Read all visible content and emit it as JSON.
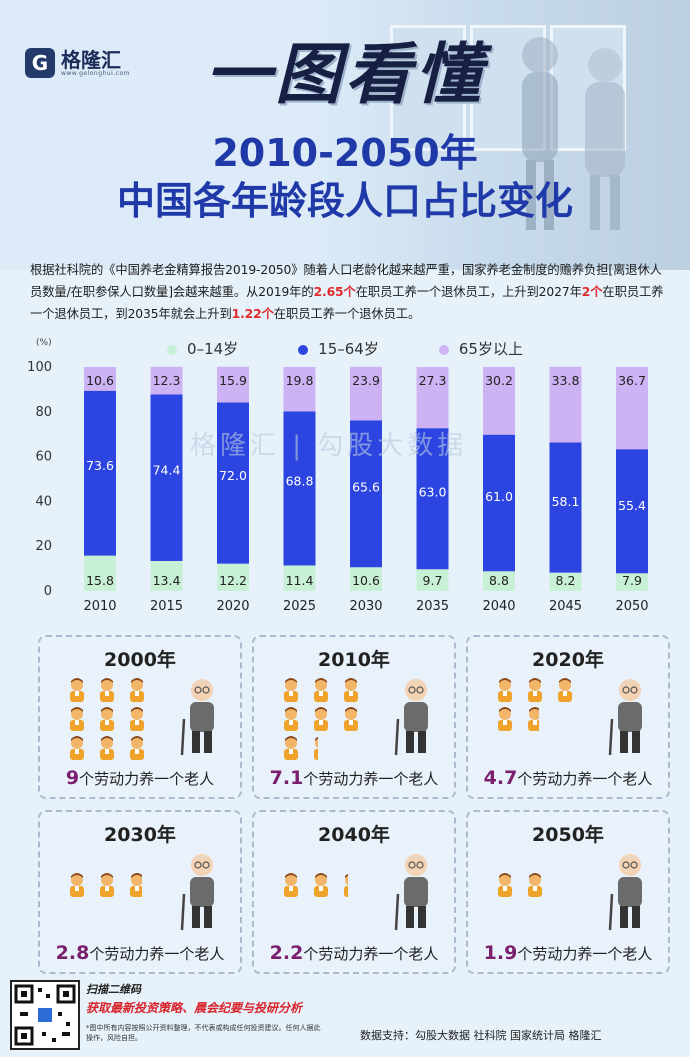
{
  "brand": {
    "name": "格隆汇",
    "site": "www.gelonghui.com"
  },
  "hero": {
    "title": "一图看懂",
    "subtitle_line1": "2010-2050年",
    "subtitle_line2": "中国各年龄段人口占比变化"
  },
  "intro": {
    "p1": "根据社科院的《中国养老金精算报告2019-2050》随着人口老龄化越来越严重，国家养老金制度的赡养负担[离退休人员数量/在职参保人口数量]会越来越重。从2019年的",
    "hl1": "2.65个",
    "p2": "在职员工养一个退休员工，上升到2027年",
    "hl2": "2个",
    "p3": "在职员工养一个退休员工，到2035年就会上升到",
    "hl3": "1.22个",
    "p4": "在职员工养一个退休员工。"
  },
  "colors": {
    "age_0_14": "#c8f0d6",
    "age_15_64": "#2c45e0",
    "age_65_plus": "#cdb3f4",
    "highlight": "#e02b2b"
  },
  "chart_data": {
    "type": "bar",
    "stacked": true,
    "unit_label": "(%)",
    "categories": [
      "2010",
      "2015",
      "2020",
      "2025",
      "2030",
      "2035",
      "2040",
      "2045",
      "2050"
    ],
    "series": [
      {
        "name": "0–14岁",
        "values": [
          15.8,
          13.4,
          12.2,
          11.4,
          10.6,
          9.7,
          8.8,
          8.2,
          7.9
        ]
      },
      {
        "name": "15–64岁",
        "values": [
          73.6,
          74.4,
          72.0,
          68.8,
          65.6,
          63.0,
          61.0,
          58.1,
          55.4
        ]
      },
      {
        "name": "65岁以上",
        "values": [
          10.6,
          12.3,
          15.9,
          19.8,
          23.9,
          27.3,
          30.2,
          33.8,
          36.7
        ]
      }
    ],
    "value_labels": [
      [
        "15.8",
        "13.4",
        "12.2",
        "11.4",
        "10.6",
        "9.7",
        "8.8",
        "8.2",
        "7.9"
      ],
      [
        "73.6",
        "74.4",
        "72.0",
        "68.8",
        "65.6",
        "63.0",
        "61.0",
        "58.1",
        "55.4"
      ],
      [
        "10.6",
        "12.3",
        "15.9",
        "19.8",
        "23.9",
        "27.3",
        "30.2",
        "33.8",
        "36.7"
      ]
    ],
    "yticks": [
      "0",
      "20",
      "40",
      "60",
      "80",
      "100"
    ],
    "ylim": [
      0,
      100
    ],
    "legend_position": "top",
    "grid": false
  },
  "chart_watermark": "格隆汇 | 勾股大数据",
  "cards": [
    {
      "year": "2000年",
      "num": "9",
      "text": "个劳动力养一个老人",
      "workers": 9
    },
    {
      "year": "2010年",
      "num": "7.1",
      "text": "个劳动力养一个老人",
      "workers": 7.1
    },
    {
      "year": "2020年",
      "num": "4.7",
      "text": "个劳动力养一个老人",
      "workers": 4.7
    },
    {
      "year": "2030年",
      "num": "2.8",
      "text": "个劳动力养一个老人",
      "workers": 2.8
    },
    {
      "year": "2040年",
      "num": "2.2",
      "text": "个劳动力养一个老人",
      "workers": 2.2
    },
    {
      "year": "2050年",
      "num": "1.9",
      "text": "个劳动力养一个老人",
      "workers": 1.9
    }
  ],
  "footer": {
    "scan": "扫描二维码",
    "promo": "获取最新投资策略、晨会纪要与投研分析",
    "disclaimer": "*图中所有内容按照公开资料整理，不代表或构成任何投资建议。任何人据此操作，风险自担。",
    "source": "数据支持：勾股大数据 社科院 国家统计局 格隆汇"
  }
}
